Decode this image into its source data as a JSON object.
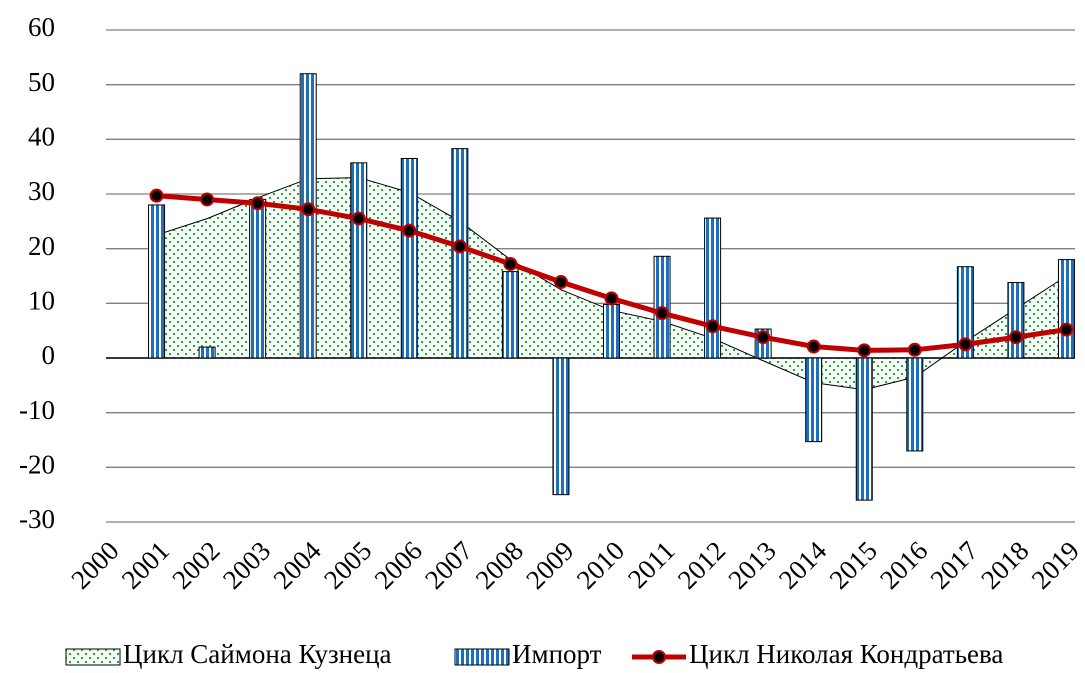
{
  "chart_data": {
    "type": "combo",
    "categories": [
      "2000",
      "2001",
      "2002",
      "2003",
      "2004",
      "2005",
      "2006",
      "2007",
      "2008",
      "2009",
      "2010",
      "2011",
      "2012",
      "2013",
      "2014",
      "2015",
      "2016",
      "2017",
      "2018",
      "2019"
    ],
    "series": [
      {
        "name": "Цикл Саймона Кузнеца",
        "type": "area",
        "color": "#2e9e4a",
        "values": [
          null,
          22.5,
          25.5,
          29.3,
          32.8,
          33,
          30.3,
          25,
          18,
          12.5,
          8.7,
          6.7,
          3.6,
          -0.5,
          -4.5,
          -5.8,
          -3.5,
          3,
          9,
          15
        ]
      },
      {
        "name": "Импорт",
        "type": "bar",
        "color": "#1f6fbf",
        "values": [
          null,
          28,
          2,
          29,
          52,
          35.7,
          36.5,
          38.3,
          15.8,
          -25,
          9.8,
          18.6,
          25.6,
          5.3,
          -15.3,
          -26,
          -17,
          16.7,
          13.8,
          18
        ]
      },
      {
        "name": "Цикл Николая Кондратьева",
        "type": "line",
        "color": "#c00000",
        "values": [
          null,
          29.7,
          29,
          28.3,
          27.2,
          25.5,
          23.3,
          20.4,
          17.2,
          13.9,
          10.9,
          8.2,
          5.8,
          3.8,
          2.1,
          1.4,
          1.5,
          2.5,
          3.8,
          5.2
        ]
      }
    ],
    "ylim": [
      -30,
      60
    ],
    "yticks": [
      -30,
      -20,
      -10,
      0,
      10,
      20,
      30,
      40,
      50,
      60
    ],
    "grid": true,
    "legend": "bottom"
  }
}
